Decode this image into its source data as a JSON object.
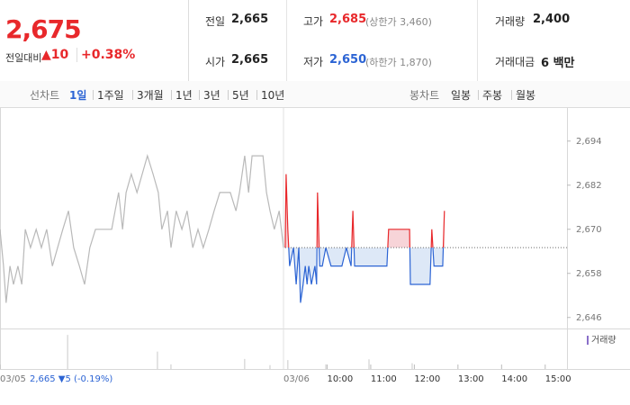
{
  "quote": {
    "price": "2,675",
    "change_label": "전일대비",
    "change": "▲10",
    "change_rate": "+0.38%"
  },
  "stats": [
    {
      "label": "전일",
      "value": "2,665"
    },
    {
      "label": "고가",
      "value": "2,685",
      "note": "(상한가 3,460)"
    },
    {
      "label": "거래량",
      "value": "2,400"
    },
    {
      "label": "시가",
      "value": "2,665"
    },
    {
      "label": "저가",
      "value": "2,650",
      "note": "(하한가 1,870)"
    },
    {
      "label": "거래대금",
      "value": "6 백만"
    }
  ],
  "tabs": {
    "line_label": "선차트",
    "line": [
      "1일",
      "1주일",
      "3개월",
      "1년",
      "3년",
      "5년",
      "10년"
    ],
    "candle_label": "봉차트",
    "candle": [
      "일봉",
      "주봉",
      "월봉"
    ]
  },
  "chart_data": {
    "type": "line",
    "xlim": [
      0,
      13
    ],
    "ylim": [
      2643,
      2703
    ],
    "xticks": [
      {
        "value": 0,
        "label": "03/05"
      },
      {
        "value": 6.5,
        "label": "03/06"
      },
      {
        "value": 7.5,
        "label": "10:00"
      },
      {
        "value": 8.5,
        "label": "11:00"
      },
      {
        "value": 9.5,
        "label": "12:00"
      },
      {
        "value": 10.5,
        "label": "13:00"
      },
      {
        "value": 11.5,
        "label": "14:00"
      },
      {
        "value": 12.5,
        "label": "15:00"
      }
    ],
    "yticks": [
      {
        "value": 2646,
        "label": "2,646"
      },
      {
        "value": 2658,
        "label": "2,658"
      },
      {
        "value": 2670,
        "label": "2,670"
      },
      {
        "value": 2682,
        "label": "2,682"
      },
      {
        "value": 2694,
        "label": "2,694"
      }
    ],
    "baseline": 2665,
    "prev_day_note": "2,665 ▼5 (-0.19%)",
    "series": [
      {
        "color": "#b9b9b9",
        "x": [
          0,
          0.08,
          0.14,
          0.23,
          0.31,
          0.41,
          0.5,
          0.58,
          0.7,
          0.83,
          0.95,
          1.07,
          1.2,
          1.32,
          1.44,
          1.57,
          1.69,
          1.82,
          1.94,
          2.06,
          2.19,
          2.31,
          2.43,
          2.56,
          2.64,
          2.72,
          2.81,
          2.89,
          3.01,
          3.14,
          3.26,
          3.38,
          3.51,
          3.63,
          3.71,
          3.84,
          3.92,
          4.04,
          4.17,
          4.29,
          4.42,
          4.54,
          4.66,
          4.79,
          4.91,
          5.04,
          5.16,
          5.28,
          5.41,
          5.49,
          5.61,
          5.7,
          5.78,
          5.9,
          6.03,
          6.11,
          6.19,
          6.29,
          6.4,
          6.5
        ],
        "values": [
          2670,
          2660,
          2650,
          2660,
          2655,
          2660,
          2655,
          2670,
          2665,
          2670,
          2665,
          2670,
          2660,
          2665,
          2670,
          2675,
          2665,
          2660,
          2655,
          2665,
          2670,
          2670,
          2670,
          2670,
          2675,
          2680,
          2670,
          2680,
          2685,
          2680,
          2685,
          2690,
          2685,
          2680,
          2670,
          2675,
          2665,
          2675,
          2670,
          2675,
          2665,
          2670,
          2665,
          2670,
          2675,
          2680,
          2680,
          2680,
          2675,
          2680,
          2690,
          2680,
          2690,
          2690,
          2690,
          2680,
          2675,
          2670,
          2675,
          2665
        ]
      },
      {
        "color_up": "#e8282b",
        "color_down": "#2c64d4",
        "fill_up": "#f7d4d8",
        "fill_down": "#dde8f7",
        "x": [
          6.54,
          6.56,
          6.6,
          6.64,
          6.73,
          6.79,
          6.85,
          6.89,
          6.95,
          7,
          7.04,
          7.08,
          7.14,
          7.22,
          7.26,
          7.28,
          7.33,
          7.39,
          7.47,
          7.59,
          7.84,
          7.94,
          8.05,
          8.09,
          8.13,
          8.21,
          8.25,
          8.87,
          8.91,
          9.39,
          9.41,
          9.86,
          9.9,
          9.95,
          10.15,
          10.19
        ],
        "values": [
          2665,
          2685,
          2670,
          2660,
          2665,
          2655,
          2665,
          2650,
          2655,
          2660,
          2655,
          2660,
          2655,
          2660,
          2655,
          2680,
          2660,
          2660,
          2665,
          2660,
          2660,
          2665,
          2660,
          2675,
          2660,
          2660,
          2660,
          2660,
          2670,
          2670,
          2655,
          2655,
          2670,
          2660,
          2660,
          2675
        ]
      }
    ],
    "volume": {
      "name": "거래량",
      "color": "#c9c9c9",
      "legend_color": "#8a6fc9",
      "ylim": [
        0,
        1000
      ],
      "x": [
        1.55,
        3.61,
        3.92,
        5.61,
        6.19,
        6.6,
        7.47,
        8.46,
        9.45
      ],
      "values": [
        880,
        450,
        120,
        260,
        100,
        230,
        120,
        250,
        150
      ]
    }
  }
}
